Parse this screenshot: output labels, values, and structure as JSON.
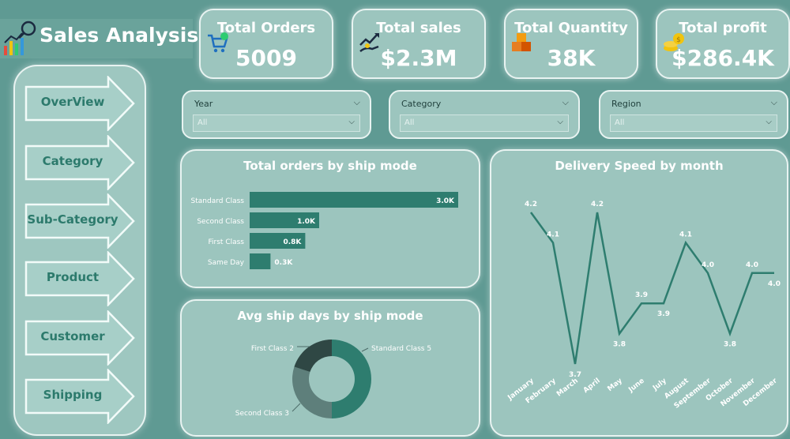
{
  "header": {
    "title": "Sales Analysis"
  },
  "kpis": [
    {
      "label": "Total Orders",
      "value": "5009",
      "icon": "shopping-cart-icon"
    },
    {
      "label": "Total sales",
      "value": "$2.3M",
      "icon": "growth-hand-icon"
    },
    {
      "label": "Total Quantity",
      "value": "38K",
      "icon": "boxes-icon"
    },
    {
      "label": "Total profit",
      "value": "$286.4K",
      "icon": "coins-icon"
    }
  ],
  "nav": [
    {
      "label": "OverView"
    },
    {
      "label": "Category"
    },
    {
      "label": "Sub-Category"
    },
    {
      "label": "Product"
    },
    {
      "label": "Customer"
    },
    {
      "label": "Shipping"
    }
  ],
  "filters": [
    {
      "label": "Year",
      "value": "All"
    },
    {
      "label": "Category",
      "value": "All"
    },
    {
      "label": "Region",
      "value": "All"
    }
  ],
  "colors": {
    "accent": "#2e7d6f",
    "background": "#5f9a93",
    "panel": "#9cc5be",
    "donut_dark": "#2f4744",
    "donut_gray": "#5e7f7b",
    "nav_text": "#2c7a6c"
  },
  "chart_data": [
    {
      "type": "bar",
      "title": "Total orders by ship mode",
      "categories": [
        "Standard Class",
        "Second Class",
        "First Class",
        "Same Day"
      ],
      "values": [
        3.0,
        1.0,
        0.8,
        0.3
      ],
      "data_labels": [
        "3.0K",
        "1.0K",
        "0.8K",
        "0.3K"
      ],
      "orientation": "horizontal"
    },
    {
      "type": "pie",
      "title": "Avg ship days by ship mode",
      "categories": [
        "Standard Class",
        "Second Class",
        "First Class"
      ],
      "values": [
        5,
        3,
        2
      ],
      "data_labels": [
        "Standard Class 5",
        "Second Class 3",
        "First Class 2"
      ],
      "donut": true
    },
    {
      "type": "line",
      "title": "Delivery Speed by month",
      "categories": [
        "January",
        "February",
        "March",
        "April",
        "May",
        "June",
        "July",
        "August",
        "September",
        "October",
        "November",
        "December"
      ],
      "values": [
        4.2,
        4.1,
        3.7,
        4.2,
        3.8,
        3.9,
        3.9,
        4.1,
        4.0,
        3.8,
        4.0,
        4.0
      ],
      "data_labels": [
        "4.2",
        "4.1",
        "3.7",
        "4.2",
        "3.8",
        "3.9",
        "3.9",
        "4.1",
        "4.0",
        "3.8",
        "4.0",
        "4.0"
      ],
      "ylim": [
        3.7,
        4.2
      ]
    }
  ]
}
